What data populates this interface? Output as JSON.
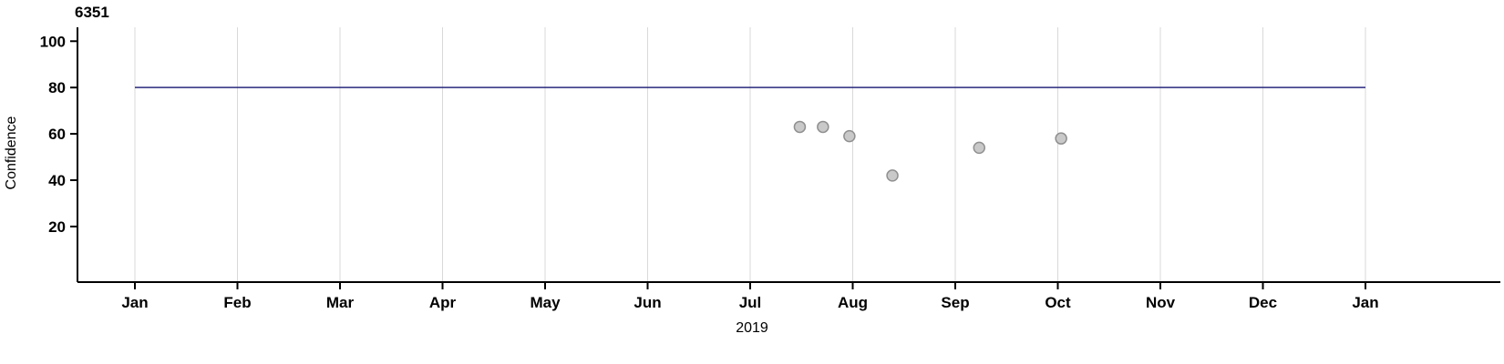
{
  "chart_data": {
    "type": "scatter",
    "title": "6351",
    "xlabel": "2019",
    "ylabel": "Confidence",
    "x_tick_labels": [
      "Jan",
      "Feb",
      "Mar",
      "Apr",
      "May",
      "Jun",
      "Jul",
      "Aug",
      "Sep",
      "Oct",
      "Nov",
      "Dec",
      "Jan"
    ],
    "y_ticks": [
      100,
      80,
      60,
      40,
      20
    ],
    "ylim": [
      -4,
      106
    ],
    "grid": "vertical-monthly-lines",
    "legend": "none",
    "reference_line": {
      "y": 80,
      "color": "#28287d"
    },
    "points": [
      {
        "date": "2019-07-16",
        "y": 63
      },
      {
        "date": "2019-07-23",
        "y": 63
      },
      {
        "date": "2019-07-31",
        "y": 59
      },
      {
        "date": "2019-08-13",
        "y": 42
      },
      {
        "date": "2019-09-08",
        "y": 54
      },
      {
        "date": "2019-10-02",
        "y": 58
      }
    ],
    "colors": {
      "point_fill": "#c9c9c9",
      "point_stroke": "#909090",
      "grid": "#d9d9d9",
      "axis": "#000000",
      "tick_label": "#000000"
    }
  }
}
